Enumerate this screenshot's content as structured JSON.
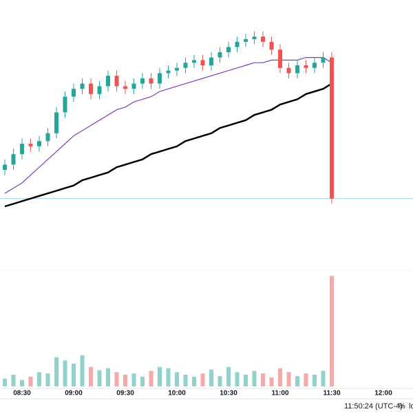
{
  "chart_data": {
    "type": "candlestick",
    "x": [
      "08:20",
      "08:25",
      "08:30",
      "08:35",
      "08:40",
      "08:45",
      "08:50",
      "08:55",
      "09:00",
      "09:05",
      "09:10",
      "09:15",
      "09:20",
      "09:25",
      "09:30",
      "09:35",
      "09:40",
      "09:45",
      "09:50",
      "09:55",
      "10:00",
      "10:05",
      "10:10",
      "10:15",
      "10:20",
      "10:25",
      "10:30",
      "10:35",
      "10:40",
      "10:45",
      "10:50",
      "10:55",
      "11:00",
      "11:05",
      "11:10",
      "11:15",
      "11:20",
      "11:25",
      "11:30"
    ],
    "open": [
      35,
      37,
      41,
      45,
      44,
      46,
      49,
      57,
      63,
      66,
      68,
      64,
      67,
      71,
      67,
      66,
      68,
      70,
      68,
      72,
      73,
      74,
      76,
      77,
      75,
      78,
      80,
      82,
      84,
      85,
      86,
      84,
      81,
      74,
      72,
      75,
      74,
      76,
      78
    ],
    "high": [
      39,
      43,
      47,
      47,
      48,
      51,
      59,
      65,
      68,
      70,
      70,
      69,
      73,
      73,
      69,
      70,
      72,
      72,
      74,
      75,
      76,
      78,
      79,
      79,
      80,
      82,
      84,
      86,
      87,
      88,
      88,
      86,
      83,
      76,
      77,
      77,
      78,
      80,
      80
    ],
    "low": [
      33,
      35,
      39,
      42,
      42,
      44,
      47,
      55,
      61,
      64,
      62,
      62,
      65,
      65,
      64,
      64,
      66,
      66,
      66,
      70,
      71,
      72,
      74,
      73,
      73,
      76,
      78,
      80,
      82,
      83,
      82,
      79,
      72,
      70,
      70,
      72,
      72,
      74,
      22
    ],
    "close": [
      37,
      41,
      45,
      44,
      46,
      49,
      57,
      63,
      66,
      68,
      64,
      67,
      71,
      67,
      66,
      68,
      70,
      68,
      72,
      73,
      74,
      76,
      77,
      75,
      78,
      80,
      82,
      84,
      85,
      86,
      84,
      81,
      74,
      72,
      75,
      74,
      76,
      78,
      24
    ],
    "volume": [
      12,
      18,
      10,
      15,
      22,
      20,
      45,
      40,
      35,
      48,
      30,
      25,
      28,
      22,
      18,
      20,
      15,
      24,
      30,
      28,
      22,
      18,
      15,
      20,
      26,
      16,
      30,
      22,
      18,
      24,
      20,
      14,
      28,
      22,
      16,
      20,
      18,
      24,
      170
    ],
    "ylim": [
      0,
      100
    ],
    "vlim": [
      0,
      180
    ],
    "up_color": "#26a69a",
    "down_color": "#ef5350",
    "lines": [
      {
        "color": "#000000",
        "values": [
          21,
          22,
          23,
          24,
          25,
          26,
          27,
          28,
          29,
          31,
          32,
          33,
          34,
          36,
          37,
          38,
          39,
          41,
          42,
          43,
          44,
          46,
          47,
          48,
          49,
          51,
          52,
          53,
          54,
          56,
          57,
          58,
          60,
          61,
          62,
          64,
          65,
          66,
          68
        ]
      },
      {
        "color": "#7b3fbf",
        "values": [
          26,
          28,
          30,
          33,
          36,
          39,
          42,
          45,
          48,
          50,
          52,
          54,
          56,
          58,
          59,
          61,
          62,
          63,
          65,
          66,
          67,
          68,
          69,
          70,
          71,
          72,
          73,
          74,
          75,
          76,
          76,
          77,
          77,
          77,
          77,
          78,
          78,
          78,
          76
        ]
      }
    ],
    "xticks": [
      "08:30",
      "09:00",
      "09:30",
      "10:00",
      "10:30",
      "11:00",
      "11:30",
      "12:00"
    ],
    "status": {
      "clock": "11:50:24 (UTC-4)",
      "percent": "%",
      "log": "lo"
    }
  }
}
